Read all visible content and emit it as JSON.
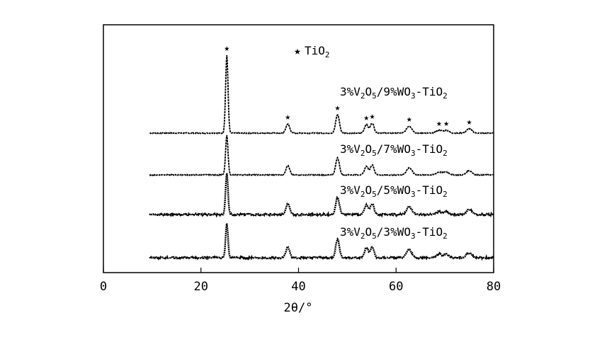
{
  "chart_data": {
    "type": "line",
    "title": "",
    "xlabel": "2θ/°",
    "ylabel": "",
    "xlim": [
      0,
      80
    ],
    "xticks": [
      "0",
      "20",
      "40",
      "60",
      "80"
    ],
    "grid": false,
    "legend": {
      "symbol": "★",
      "label_parts": [
        [
          "Ti",
          false
        ],
        [
          "O",
          false
        ],
        [
          "2",
          true
        ]
      ],
      "position": "top-center"
    },
    "peak_marker_positions_2theta": [
      25.3,
      37.8,
      48.0,
      53.9,
      55.1,
      62.7,
      68.8,
      70.3,
      75.0
    ],
    "series": [
      {
        "name": "3%V2O5/9%WO3-TiO2",
        "label_parts": [
          [
            "3%V",
            false
          ],
          [
            "2",
            true
          ],
          [
            "O",
            false
          ],
          [
            "5",
            true
          ],
          [
            "/9%WO",
            false
          ],
          [
            "3",
            true
          ],
          [
            "-TiO",
            false
          ],
          [
            "2",
            true
          ]
        ],
        "peaks": [
          [
            25.3,
            110
          ],
          [
            37.8,
            13
          ],
          [
            48.0,
            26
          ],
          [
            53.9,
            12
          ],
          [
            55.1,
            14
          ],
          [
            62.7,
            10
          ],
          [
            68.8,
            4
          ],
          [
            70.3,
            4
          ],
          [
            75.0,
            6
          ]
        ]
      },
      {
        "name": "3%V2O5/7%WO3-TiO2",
        "label_parts": [
          [
            "3%V",
            false
          ],
          [
            "2",
            true
          ],
          [
            "O",
            false
          ],
          [
            "5",
            true
          ],
          [
            "/7%WO",
            false
          ],
          [
            "3",
            true
          ],
          [
            "-TiO",
            false
          ],
          [
            "2",
            true
          ]
        ],
        "peaks": [
          [
            25.3,
            56
          ],
          [
            37.8,
            13
          ],
          [
            48.0,
            24
          ],
          [
            53.9,
            12
          ],
          [
            55.1,
            14
          ],
          [
            62.7,
            10
          ],
          [
            68.8,
            4
          ],
          [
            70.3,
            4
          ],
          [
            75.0,
            6
          ]
        ]
      },
      {
        "name": "3%V2O5/5%WO3-TiO2",
        "label_parts": [
          [
            "3%V",
            false
          ],
          [
            "2",
            true
          ],
          [
            "O",
            false
          ],
          [
            "5",
            true
          ],
          [
            "/5%WO",
            false
          ],
          [
            "3",
            true
          ],
          [
            "-TiO",
            false
          ],
          [
            "2",
            true
          ]
        ],
        "peaks": [
          [
            25.3,
            58
          ],
          [
            37.8,
            15
          ],
          [
            48.0,
            24
          ],
          [
            53.9,
            13
          ],
          [
            55.1,
            15
          ],
          [
            62.7,
            11
          ],
          [
            68.8,
            4
          ],
          [
            70.3,
            4
          ],
          [
            75.0,
            7
          ]
        ]
      },
      {
        "name": "3%V2O5/3%WO3-TiO2",
        "label_parts": [
          [
            "3%V",
            false
          ],
          [
            "2",
            true
          ],
          [
            "O",
            false
          ],
          [
            "5",
            true
          ],
          [
            "/3%WO",
            false
          ],
          [
            "3",
            true
          ],
          [
            "-TiO",
            false
          ],
          [
            "2",
            true
          ]
        ],
        "peaks": [
          [
            25.3,
            48
          ],
          [
            37.8,
            15
          ],
          [
            48.0,
            26
          ],
          [
            53.9,
            14
          ],
          [
            55.1,
            15
          ],
          [
            62.7,
            11
          ],
          [
            68.8,
            5
          ],
          [
            70.3,
            5
          ],
          [
            75.0,
            7
          ]
        ]
      }
    ]
  }
}
